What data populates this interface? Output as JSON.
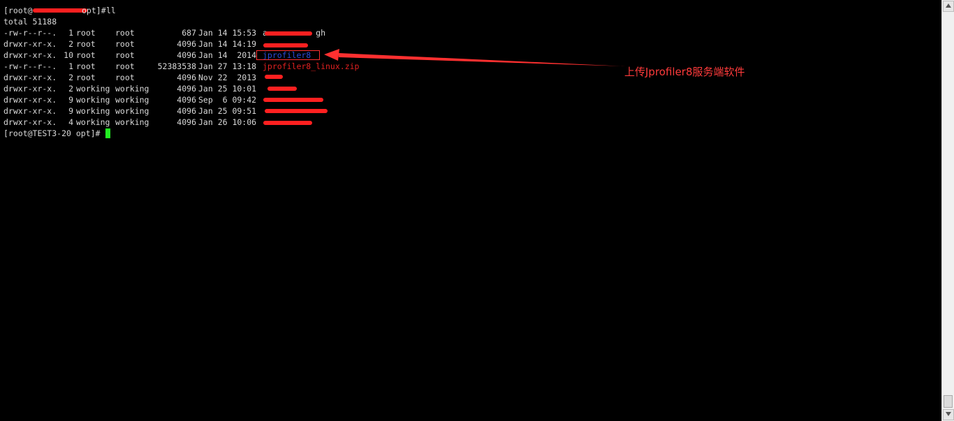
{
  "terminal": {
    "prompt_start": "[root@",
    "prompt_mid": "opt]# ",
    "command": "ll",
    "total_line": "total 51188",
    "rows": [
      {
        "perms": "-rw-r--r--.",
        "links": "1",
        "owner": "root",
        "group": "root",
        "size": "687",
        "date": "Jan 14 15:53",
        "name": "a          gh",
        "name_color": "#d8d8d8"
      },
      {
        "perms": "drwxr-xr-x.",
        "links": "2",
        "owner": "root",
        "group": "root",
        "size": "4096",
        "date": "Jan 14 14:19",
        "name": "",
        "name_color": "#2b4bd8"
      },
      {
        "perms": "drwxr-xr-x.",
        "links": "10",
        "owner": "root",
        "group": "root",
        "size": "4096",
        "date": "Jan 14  2014",
        "name": "jprofiler8",
        "name_color": "#2b4bd8"
      },
      {
        "perms": "-rw-r--r--.",
        "links": "1",
        "owner": "root",
        "group": "root",
        "size": "52383538",
        "date": "Jan 27 13:18",
        "name": "jprofiler8_linux.zip",
        "name_color": "#e02020"
      },
      {
        "perms": "drwxr-xr-x.",
        "links": "2",
        "owner": "root",
        "group": "root",
        "size": "4096",
        "date": "Nov 22  2013",
        "name": "",
        "name_color": "#2b4bd8"
      },
      {
        "perms": "drwxr-xr-x.",
        "links": "2",
        "owner": "working",
        "group": "working",
        "size": "4096",
        "date": "Jan 25 10:01",
        "name": "",
        "name_color": "#2b4bd8"
      },
      {
        "perms": "drwxr-xr-x.",
        "links": "9",
        "owner": "working",
        "group": "working",
        "size": "4096",
        "date": "Sep  6 09:42",
        "name": "",
        "name_color": "#2b4bd8"
      },
      {
        "perms": "drwxr-xr-x.",
        "links": "9",
        "owner": "working",
        "group": "working",
        "size": "4096",
        "date": "Jan 25 09:51",
        "name": "",
        "name_color": "#2b4bd8"
      },
      {
        "perms": "drwxr-xr-x.",
        "links": "4",
        "owner": "working",
        "group": "working",
        "size": "4096",
        "date": "Jan 26 10:06",
        "name": "",
        "name_color": "#2b4bd8"
      }
    ],
    "final_prompt": "[root@TEST3-20 opt]# ",
    "background_color": "#000000",
    "text_color": "#d8d8d8",
    "cursor_color": "#22ee22"
  },
  "annotation": {
    "text": "上传Jprofiler8服务端软件",
    "color": "#ff3b3b"
  },
  "scrollbar": {
    "up_icon": "triangle-up-icon",
    "down_icon": "triangle-down-icon"
  }
}
